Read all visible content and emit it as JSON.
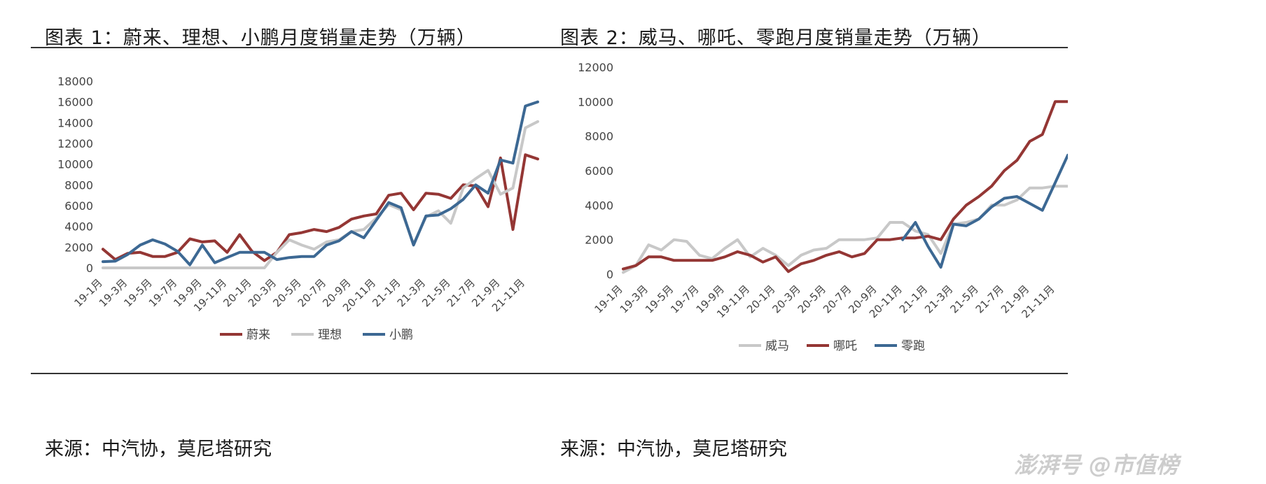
{
  "panels": [
    {
      "title": "图表 1：蔚来、理想、小鹏月度销量走势（万辆）",
      "source": "来源：中汽协，莫尼塔研究"
    },
    {
      "title": "图表 2：威马、哪吒、零跑月度销量走势（万辆）",
      "source": "来源：中汽协，莫尼塔研究"
    }
  ],
  "watermark": "澎湃号 @市值榜",
  "chart_data": [
    {
      "type": "line",
      "title": "图表 1：蔚来、理想、小鹏月度销量走势（万辆）",
      "ylim": [
        0,
        18000
      ],
      "yticks": [
        0,
        2000,
        4000,
        6000,
        8000,
        10000,
        12000,
        14000,
        16000,
        18000
      ],
      "xtick_labels": [
        "19-1月",
        "19-3月",
        "19-5月",
        "19-7月",
        "19-9月",
        "19-11月",
        "20-1月",
        "20-3月",
        "20-5月",
        "20-7月",
        "20-9月",
        "20-11月",
        "21-1月",
        "21-3月",
        "21-5月",
        "21-7月",
        "21-9月",
        "21-11月"
      ],
      "x": [
        "19-1月",
        "19-2月",
        "19-3月",
        "19-4月",
        "19-5月",
        "19-6月",
        "19-7月",
        "19-8月",
        "19-9月",
        "19-10月",
        "19-11月",
        "19-12月",
        "20-1月",
        "20-2月",
        "20-3月",
        "20-4月",
        "20-5月",
        "20-6月",
        "20-7月",
        "20-8月",
        "20-9月",
        "20-10月",
        "20-11月",
        "20-12月",
        "21-1月",
        "21-2月",
        "21-3月",
        "21-4月",
        "21-5月",
        "21-6月",
        "21-7月",
        "21-8月",
        "21-9月",
        "21-10月",
        "21-11月",
        "21-12月"
      ],
      "legend_position": "bottom",
      "series": [
        {
          "name": "蔚来",
          "color": "#943634",
          "values": [
            1800,
            800,
            1400,
            1500,
            1100,
            1100,
            1500,
            2800,
            2500,
            2600,
            1500,
            3200,
            1600,
            700,
            1500,
            3200,
            3400,
            3700,
            3500,
            3900,
            4700,
            5000,
            5200,
            7000,
            7200,
            5600,
            7200,
            7100,
            6700,
            8000,
            7900,
            5900,
            10600,
            3700,
            10900,
            10500
          ]
        },
        {
          "name": "理想",
          "color": "#c8c8c8",
          "values": [
            0,
            0,
            0,
            0,
            0,
            0,
            0,
            0,
            0,
            0,
            0,
            0,
            0,
            0,
            1500,
            2700,
            2200,
            1800,
            2500,
            2700,
            3500,
            3700,
            4800,
            6100,
            5600,
            2300,
            4900,
            5500,
            4300,
            7700,
            8600,
            9400,
            7100,
            7700,
            13500,
            14100
          ]
        },
        {
          "name": "小鹏",
          "color": "#3c6893",
          "values": [
            600,
            650,
            1300,
            2200,
            2700,
            2300,
            1600,
            300,
            2200,
            500,
            1000,
            1500,
            1500,
            1500,
            800,
            1000,
            1100,
            1100,
            2200,
            2600,
            3500,
            2900,
            4600,
            6300,
            5800,
            2200,
            5000,
            5100,
            5700,
            6600,
            8000,
            7200,
            10400,
            10100,
            15600,
            16000
          ]
        }
      ]
    },
    {
      "type": "line",
      "title": "图表 2：威马、哪吒、零跑月度销量走势（万辆）",
      "ylim": [
        0,
        12000
      ],
      "yticks": [
        0,
        2000,
        4000,
        6000,
        8000,
        10000,
        12000
      ],
      "xtick_labels": [
        "19-1月",
        "19-3月",
        "19-5月",
        "19-7月",
        "19-9月",
        "19-11月",
        "20-1月",
        "20-3月",
        "20-5月",
        "20-7月",
        "20-9月",
        "20-11月",
        "21-1月",
        "21-3月",
        "21-5月",
        "21-7月",
        "21-9月",
        "21-11月"
      ],
      "x": [
        "19-1月",
        "19-2月",
        "19-3月",
        "19-4月",
        "19-5月",
        "19-6月",
        "19-7月",
        "19-8月",
        "19-9月",
        "19-10月",
        "19-11月",
        "19-12月",
        "20-1月",
        "20-2月",
        "20-3月",
        "20-4月",
        "20-5月",
        "20-6月",
        "20-7月",
        "20-8月",
        "20-9月",
        "20-10月",
        "20-11月",
        "20-12月",
        "21-1月",
        "21-2月",
        "21-3月",
        "21-4月",
        "21-5月",
        "21-6月",
        "21-7月",
        "21-8月",
        "21-9月",
        "21-10月",
        "21-11月",
        "21-12月"
      ],
      "legend_position": "bottom",
      "series": [
        {
          "name": "威马",
          "color": "#c8c8c8",
          "values": [
            100,
            500,
            1700,
            1400,
            2000,
            1900,
            1100,
            900,
            1500,
            2000,
            1000,
            1500,
            1100,
            500,
            1100,
            1400,
            1500,
            2000,
            2000,
            2000,
            2100,
            3000,
            3000,
            2500,
            2300,
            1200,
            2900,
            3000,
            3200,
            4000,
            4000,
            4300,
            5000,
            5000,
            5100,
            5100
          ]
        },
        {
          "name": "哪吒",
          "color": "#943634",
          "values": [
            300,
            500,
            1000,
            1000,
            800,
            800,
            800,
            800,
            1000,
            1300,
            1100,
            700,
            1000,
            150,
            600,
            800,
            1100,
            1300,
            1000,
            1200,
            2000,
            2000,
            2100,
            2100,
            2200,
            2000,
            3200,
            4000,
            4500,
            5100,
            6000,
            6600,
            7700,
            8100,
            10000,
            10000
          ]
        },
        {
          "name": "零跑",
          "color": "#3c6893",
          "values": [
            null,
            null,
            null,
            null,
            null,
            null,
            null,
            null,
            null,
            null,
            null,
            null,
            null,
            null,
            null,
            null,
            null,
            null,
            null,
            null,
            null,
            null,
            2000,
            3000,
            1600,
            400,
            2900,
            2800,
            3200,
            3900,
            4400,
            4500,
            4100,
            3700,
            5300,
            6900
          ]
        }
      ]
    }
  ]
}
